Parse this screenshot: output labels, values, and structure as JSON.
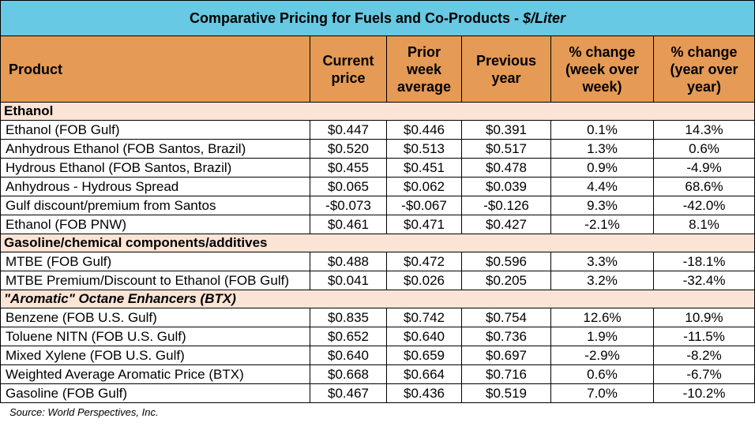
{
  "header": {
    "title": "Comparative Pricing for Fuels and Co-Products -",
    "unit": "$/Liter"
  },
  "table": {
    "columns": [
      "Product",
      "Current price",
      "Prior week average",
      "Previous year",
      "% change (week over week)",
      "% change (year over year)"
    ],
    "sections": [
      {
        "title": "Ethanol",
        "rows": [
          [
            "Ethanol (FOB Gulf)",
            "$0.447",
            "$0.446",
            "$0.391",
            "0.1%",
            "14.3%"
          ],
          [
            "Anhydrous Ethanol (FOB Santos, Brazil)",
            "$0.520",
            "$0.513",
            "$0.517",
            "1.3%",
            "0.6%"
          ],
          [
            "Hydrous Ethanol (FOB Santos, Brazil)",
            "$0.455",
            "$0.451",
            "$0.478",
            "0.9%",
            "-4.9%"
          ],
          [
            "Anhydrous - Hydrous Spread",
            "$0.065",
            "$0.062",
            "$0.039",
            "4.4%",
            "68.6%"
          ],
          [
            "Gulf discount/premium from Santos",
            "-$0.073",
            "-$0.067",
            "-$0.126",
            "9.3%",
            "-42.0%"
          ],
          [
            "Ethanol (FOB PNW)",
            "$0.461",
            "$0.471",
            "$0.427",
            "-2.1%",
            "8.1%"
          ]
        ]
      },
      {
        "title": "Gasoline/chemical components/additives",
        "rows": [
          [
            "MTBE (FOB Gulf)",
            "$0.488",
            "$0.472",
            "$0.596",
            "3.3%",
            "-18.1%"
          ],
          [
            "MTBE Premium/Discount to Ethanol (FOB Gulf)",
            "$0.041",
            "$0.026",
            "$0.205",
            "3.2%",
            "-32.4%"
          ]
        ]
      },
      {
        "title": "\"Aromatic\" Octane Enhancers (BTX)",
        "rows": [
          [
            "Benzene (FOB U.S. Gulf)",
            "$0.835",
            "$0.742",
            "$0.754",
            "12.6%",
            "10.9%"
          ],
          [
            "Toluene NITN (FOB U.S. Gulf)",
            "$0.652",
            "$0.640",
            "$0.736",
            "1.9%",
            "-11.5%"
          ],
          [
            "Mixed Xylene (FOB U.S. Gulf)",
            "$0.640",
            "$0.659",
            "$0.697",
            "-2.9%",
            "-8.2%"
          ],
          [
            "Weighted Average Aromatic Price (BTX)",
            "$0.668",
            "$0.664",
            "$0.716",
            "0.6%",
            "-6.7%"
          ],
          [
            "Gasoline (FOB Gulf)",
            "$0.467",
            "$0.436",
            "$0.519",
            "7.0%",
            "-10.2%"
          ]
        ]
      }
    ]
  },
  "source": "Source: World Perspectives, Inc."
}
